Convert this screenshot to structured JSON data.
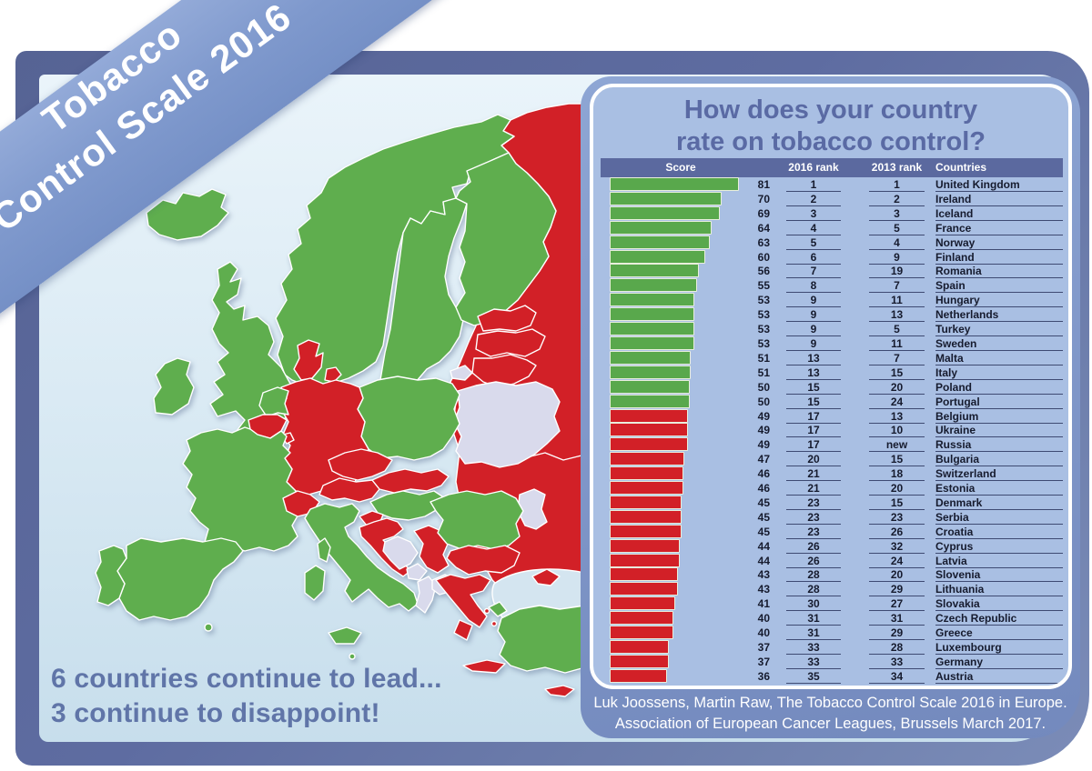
{
  "ribbon": {
    "line1": "Tobacco",
    "line2": "Control Scale 2016"
  },
  "headline": {
    "line1": "6 countries continue to lead...",
    "line2": "3 continue to disappoint!"
  },
  "panel": {
    "title_line1": "How does your country",
    "title_line2": "rate on tobacco control?"
  },
  "footer": {
    "line1": "Luk Joossens, Martin Raw, The Tobacco Control Scale 2016 in Europe.",
    "line2": "Association of European Cancer Leagues, Brussels March 2017."
  },
  "colors": {
    "lead_green": "#59a84c",
    "disappoint_red": "#d22027",
    "no_data_lavender": "#d9daec",
    "frame_blue": "#5e6ca1",
    "ribbon_blue": "#7f99cd",
    "panel_blue": "#8097c9",
    "table_bg": "#a9bfe3",
    "header_bar_blue": "#5b699f",
    "title_text_blue": "#5a6aa4",
    "headline_text_blue": "#6075a8"
  },
  "table": {
    "headers": [
      "Score",
      "2016 rank",
      "2013 rank",
      "Countries"
    ],
    "rows": [
      {
        "score": 81,
        "rank_2016": "1",
        "rank_2013": "1",
        "country": "United Kingdom",
        "color": "green"
      },
      {
        "score": 70,
        "rank_2016": "2",
        "rank_2013": "2",
        "country": "Ireland",
        "color": "green"
      },
      {
        "score": 69,
        "rank_2016": "3",
        "rank_2013": "3",
        "country": "Iceland",
        "color": "green"
      },
      {
        "score": 64,
        "rank_2016": "4",
        "rank_2013": "5",
        "country": "France",
        "color": "green"
      },
      {
        "score": 63,
        "rank_2016": "5",
        "rank_2013": "4",
        "country": "Norway",
        "color": "green"
      },
      {
        "score": 60,
        "rank_2016": "6",
        "rank_2013": "9",
        "country": "Finland",
        "color": "green"
      },
      {
        "score": 56,
        "rank_2016": "7",
        "rank_2013": "19",
        "country": "Romania",
        "color": "green"
      },
      {
        "score": 55,
        "rank_2016": "8",
        "rank_2013": "7",
        "country": "Spain",
        "color": "green"
      },
      {
        "score": 53,
        "rank_2016": "9",
        "rank_2013": "11",
        "country": "Hungary",
        "color": "green"
      },
      {
        "score": 53,
        "rank_2016": "9",
        "rank_2013": "13",
        "country": "Netherlands",
        "color": "green"
      },
      {
        "score": 53,
        "rank_2016": "9",
        "rank_2013": "5",
        "country": "Turkey",
        "color": "green"
      },
      {
        "score": 53,
        "rank_2016": "9",
        "rank_2013": "11",
        "country": "Sweden",
        "color": "green"
      },
      {
        "score": 51,
        "rank_2016": "13",
        "rank_2013": "7",
        "country": "Malta",
        "color": "green"
      },
      {
        "score": 51,
        "rank_2016": "13",
        "rank_2013": "15",
        "country": "Italy",
        "color": "green"
      },
      {
        "score": 50,
        "rank_2016": "15",
        "rank_2013": "20",
        "country": "Poland",
        "color": "green"
      },
      {
        "score": 50,
        "rank_2016": "15",
        "rank_2013": "24",
        "country": "Portugal",
        "color": "green"
      },
      {
        "score": 49,
        "rank_2016": "17",
        "rank_2013": "13",
        "country": "Belgium",
        "color": "red"
      },
      {
        "score": 49,
        "rank_2016": "17",
        "rank_2013": "10",
        "country": "Ukraine",
        "color": "red"
      },
      {
        "score": 49,
        "rank_2016": "17",
        "rank_2013": "new",
        "country": "Russia",
        "color": "red"
      },
      {
        "score": 47,
        "rank_2016": "20",
        "rank_2013": "15",
        "country": "Bulgaria",
        "color": "red"
      },
      {
        "score": 46,
        "rank_2016": "21",
        "rank_2013": "18",
        "country": "Switzerland",
        "color": "red"
      },
      {
        "score": 46,
        "rank_2016": "21",
        "rank_2013": "20",
        "country": "Estonia",
        "color": "red"
      },
      {
        "score": 45,
        "rank_2016": "23",
        "rank_2013": "15",
        "country": "Denmark",
        "color": "red"
      },
      {
        "score": 45,
        "rank_2016": "23",
        "rank_2013": "23",
        "country": "Serbia",
        "color": "red"
      },
      {
        "score": 45,
        "rank_2016": "23",
        "rank_2013": "26",
        "country": "Croatia",
        "color": "red"
      },
      {
        "score": 44,
        "rank_2016": "26",
        "rank_2013": "32",
        "country": "Cyprus",
        "color": "red"
      },
      {
        "score": 44,
        "rank_2016": "26",
        "rank_2013": "24",
        "country": "Latvia",
        "color": "red"
      },
      {
        "score": 43,
        "rank_2016": "28",
        "rank_2013": "20",
        "country": "Slovenia",
        "color": "red"
      },
      {
        "score": 43,
        "rank_2016": "28",
        "rank_2013": "29",
        "country": "Lithuania",
        "color": "red"
      },
      {
        "score": 41,
        "rank_2016": "30",
        "rank_2013": "27",
        "country": "Slovakia",
        "color": "red"
      },
      {
        "score": 40,
        "rank_2016": "31",
        "rank_2013": "31",
        "country": "Czech Republic",
        "color": "red"
      },
      {
        "score": 40,
        "rank_2016": "31",
        "rank_2013": "29",
        "country": "Greece",
        "color": "red"
      },
      {
        "score": 37,
        "rank_2016": "33",
        "rank_2013": "28",
        "country": "Luxembourg",
        "color": "red"
      },
      {
        "score": 37,
        "rank_2016": "33",
        "rank_2013": "33",
        "country": "Germany",
        "color": "red"
      },
      {
        "score": 36,
        "rank_2016": "35",
        "rank_2013": "34",
        "country": "Austria",
        "color": "red"
      }
    ]
  },
  "map": {
    "green_countries": [
      "Iceland",
      "Ireland",
      "United Kingdom",
      "Norway",
      "Sweden",
      "Finland",
      "France",
      "Spain",
      "Portugal",
      "Italy",
      "Malta",
      "Netherlands",
      "Poland",
      "Hungary",
      "Romania",
      "Turkey"
    ],
    "red_countries": [
      "Russia",
      "Estonia",
      "Latvia",
      "Lithuania",
      "Denmark",
      "Germany",
      "Belgium",
      "Luxembourg",
      "Switzerland",
      "Czech Republic",
      "Austria",
      "Slovakia",
      "Ukraine",
      "Slovenia",
      "Croatia",
      "Serbia",
      "Bulgaria",
      "Greece",
      "Cyprus"
    ],
    "no_data_regions": [
      "Belarus",
      "Kaliningrad",
      "Moldova",
      "Bosnia and Herzegovina",
      "Montenegro",
      "Albania",
      "Macedonia"
    ]
  },
  "chart_data": {
    "type": "bar",
    "orientation": "horizontal",
    "title": "How does your country rate on tobacco control?",
    "value_label": "Score",
    "categories": [
      "United Kingdom",
      "Ireland",
      "Iceland",
      "France",
      "Norway",
      "Finland",
      "Romania",
      "Spain",
      "Hungary",
      "Netherlands",
      "Turkey",
      "Sweden",
      "Malta",
      "Italy",
      "Poland",
      "Portugal",
      "Belgium",
      "Ukraine",
      "Russia",
      "Bulgaria",
      "Switzerland",
      "Estonia",
      "Denmark",
      "Serbia",
      "Croatia",
      "Cyprus",
      "Latvia",
      "Slovenia",
      "Lithuania",
      "Slovakia",
      "Czech Republic",
      "Greece",
      "Luxembourg",
      "Germany",
      "Austria"
    ],
    "values": [
      81,
      70,
      69,
      64,
      63,
      60,
      56,
      55,
      53,
      53,
      53,
      53,
      51,
      51,
      50,
      50,
      49,
      49,
      49,
      47,
      46,
      46,
      45,
      45,
      45,
      44,
      44,
      43,
      43,
      41,
      40,
      40,
      37,
      37,
      36
    ],
    "rank_2016": [
      "1",
      "2",
      "3",
      "4",
      "5",
      "6",
      "7",
      "8",
      "9",
      "9",
      "9",
      "9",
      "13",
      "13",
      "15",
      "15",
      "17",
      "17",
      "17",
      "20",
      "21",
      "21",
      "23",
      "23",
      "23",
      "26",
      "26",
      "28",
      "28",
      "30",
      "31",
      "31",
      "33",
      "33",
      "35"
    ],
    "rank_2013": [
      "1",
      "2",
      "3",
      "5",
      "4",
      "9",
      "19",
      "7",
      "11",
      "13",
      "5",
      "11",
      "7",
      "15",
      "20",
      "24",
      "13",
      "10",
      "new",
      "15",
      "18",
      "20",
      "15",
      "23",
      "26",
      "32",
      "24",
      "20",
      "29",
      "27",
      "31",
      "29",
      "28",
      "33",
      "34"
    ],
    "bar_colors": [
      "green",
      "green",
      "green",
      "green",
      "green",
      "green",
      "green",
      "green",
      "green",
      "green",
      "green",
      "green",
      "green",
      "green",
      "green",
      "green",
      "red",
      "red",
      "red",
      "red",
      "red",
      "red",
      "red",
      "red",
      "red",
      "red",
      "red",
      "red",
      "red",
      "red",
      "red",
      "red",
      "red",
      "red",
      "red"
    ],
    "xlim": [
      0,
      85
    ],
    "grid": false,
    "legend": false
  }
}
